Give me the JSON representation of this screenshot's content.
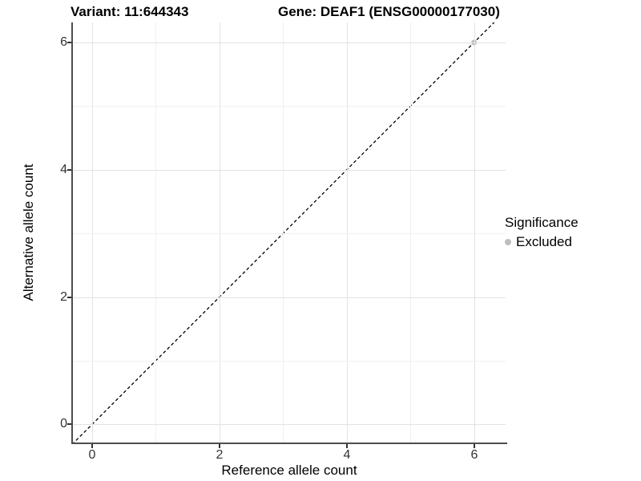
{
  "header": {
    "variant_label": "Variant: 11:644343",
    "gene_label": "Gene: DEAF1 (ENSG00000177030)"
  },
  "axes": {
    "x_label": "Reference allele count",
    "y_label": "Alternative allele count",
    "x_tick_labels": [
      "0",
      "2",
      "4",
      "6"
    ],
    "y_tick_labels": [
      "0",
      "2",
      "4",
      "6"
    ]
  },
  "legend": {
    "title": "Significance",
    "entries": [
      {
        "label": "Excluded",
        "color": "#bebebe"
      }
    ]
  },
  "chart_data": {
    "type": "scatter",
    "title": "Variant: 11:644343   Gene: DEAF1 (ENSG00000177030)",
    "xlabel": "Reference allele count",
    "ylabel": "Alternative allele count",
    "xlim": [
      -0.3,
      6.5
    ],
    "ylim": [
      -0.3,
      6.3
    ],
    "x_ticks": [
      0,
      2,
      4,
      6
    ],
    "y_ticks": [
      0,
      2,
      4,
      6
    ],
    "grid": true,
    "legend_position": "right",
    "series": [
      {
        "name": "Excluded",
        "color": "#bebebe",
        "points": [
          {
            "x": 6,
            "y": 6
          }
        ]
      }
    ],
    "reference_line": {
      "slope": 1,
      "intercept": 0,
      "style": "dashed",
      "color": "#000000"
    }
  },
  "colors": {
    "background": "#ffffff",
    "axis_line": "#4d4d4d",
    "grid_major": "#e3e3e3",
    "grid_minor": "#f0f0f0",
    "tick_text": "#333333",
    "point": "#bebebe"
  }
}
